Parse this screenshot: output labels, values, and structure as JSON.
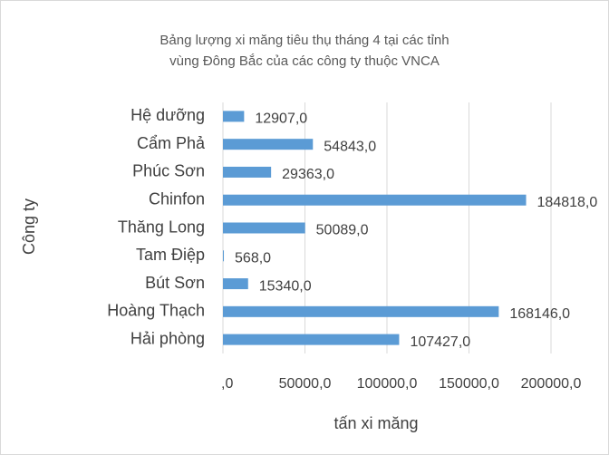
{
  "chart_data": {
    "type": "bar",
    "orientation": "horizontal",
    "title": [
      "Bảng lượng xi măng tiêu thụ tháng 4 tại các tỉnh",
      "vùng Đông Bắc của các công ty thuộc VNCA"
    ],
    "x_label": "tấn xi măng",
    "y_label": "Công ty",
    "categories": [
      "Hệ dưỡng",
      "Cẩm Phả",
      "Phúc Sơn",
      "Chinfon",
      "Thăng Long",
      "Tam Điệp",
      "Bút Sơn",
      "Hoàng Thạch",
      "Hải phòng"
    ],
    "values": [
      12907,
      54843,
      29363,
      184818,
      50089,
      568,
      15340,
      168146,
      107427
    ],
    "value_labels": [
      "12907,0",
      "54843,0",
      "29363,0",
      "184818,0",
      "50089,0",
      "568,0",
      "15340,0",
      "168146,0",
      "107427,0"
    ],
    "color": "#5b9bd5",
    "xlim": [
      0,
      200000
    ],
    "xticks": [
      {
        "value": 0,
        "label": ",0"
      },
      {
        "value": 50000,
        "label": "50000,0"
      },
      {
        "value": 100000,
        "label": "100000,0"
      },
      {
        "value": 150000,
        "label": "150000,0"
      },
      {
        "value": 200000,
        "label": "200000,0"
      }
    ],
    "grid": true
  }
}
